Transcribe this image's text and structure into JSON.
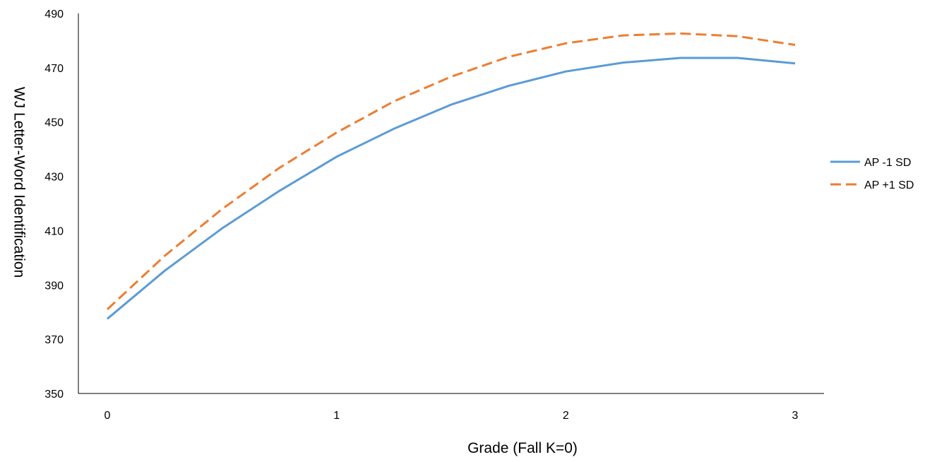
{
  "chart_data": {
    "type": "line",
    "title": "",
    "xlabel": "Grade (Fall K=0)",
    "ylabel": "WJ Letter-Word Identification",
    "xlim": [
      0,
      3
    ],
    "ylim": [
      350,
      490
    ],
    "x_ticks": [
      0,
      1,
      2,
      3
    ],
    "x_tick_labels": [
      "0",
      "1",
      "2",
      "3"
    ],
    "y_ticks": [
      350,
      370,
      390,
      410,
      430,
      450,
      470,
      490
    ],
    "y_tick_labels": [
      "350",
      "370",
      "390",
      "410",
      "430",
      "450",
      "470",
      "490"
    ],
    "grid": false,
    "legend_position": "right",
    "x": [
      0,
      0.25,
      0.5,
      0.75,
      1,
      1.25,
      1.5,
      1.75,
      2,
      2.25,
      2.5,
      2.75,
      3
    ],
    "series": [
      {
        "name": "AP -1 SD",
        "color": "#5b9bd5",
        "dash": "solid",
        "values": [
          377.5,
          395.2,
          410.8,
          424.6,
          437.2,
          447.5,
          456.4,
          463.3,
          468.6,
          471.9,
          473.6,
          473.6,
          471.6
        ]
      },
      {
        "name": "AP +1 SD",
        "color": "#ed7d31",
        "dash": "dashed",
        "values": [
          381.0,
          400.7,
          417.9,
          433.1,
          446.1,
          457.6,
          466.7,
          474.0,
          479.0,
          481.9,
          482.6,
          481.6,
          478.4
        ]
      }
    ]
  }
}
